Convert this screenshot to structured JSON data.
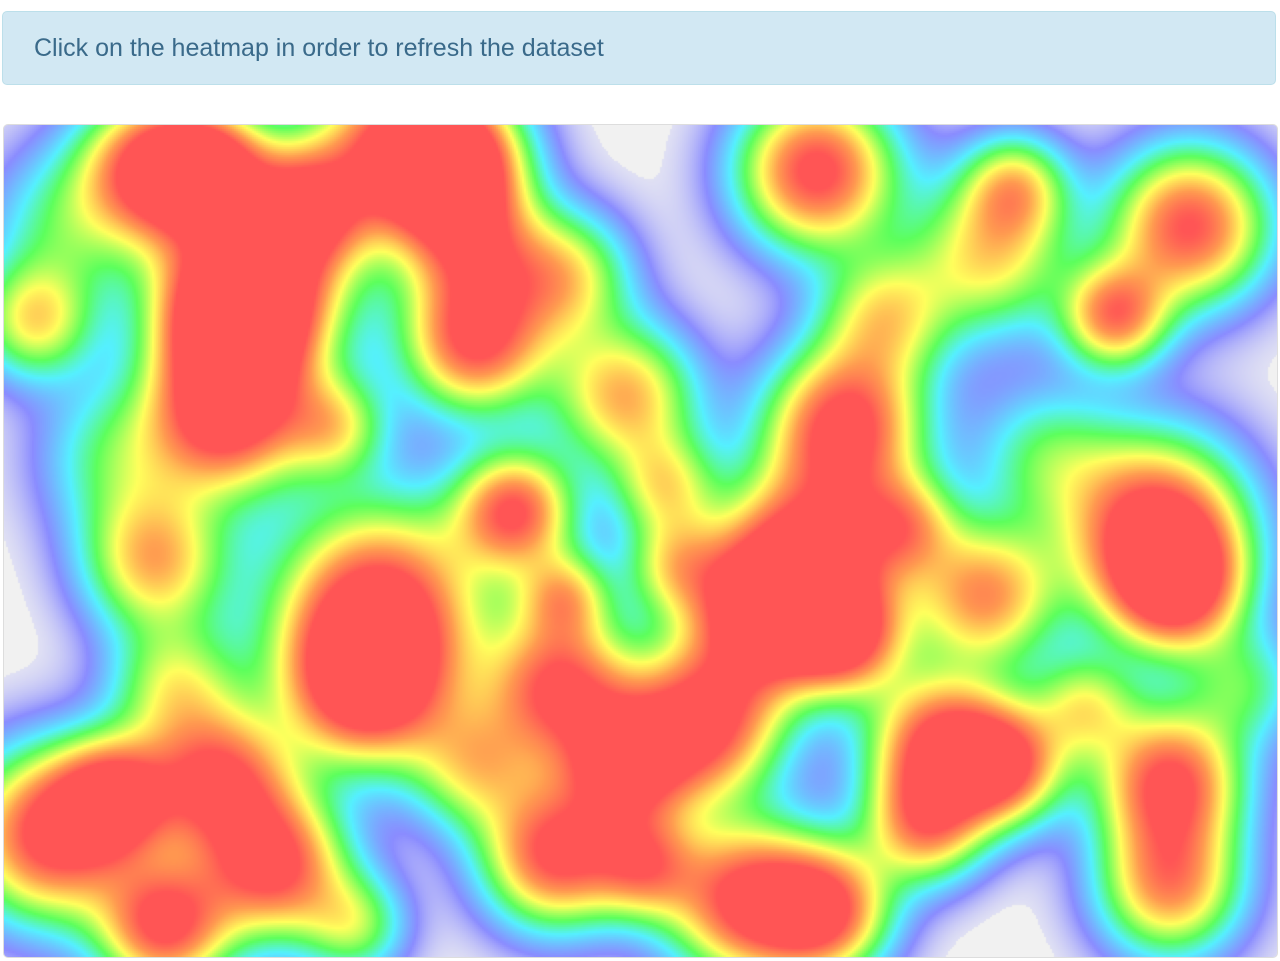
{
  "alert": {
    "message": "Click on the heatmap in order to refresh the dataset"
  },
  "heatmap": {
    "background_color": "#f1f1f1",
    "gradient": [
      "#8a8cff",
      "#55f0ff",
      "#5cff5c",
      "#ffff5c",
      "#ff9a50",
      "#ff5555"
    ]
  }
}
